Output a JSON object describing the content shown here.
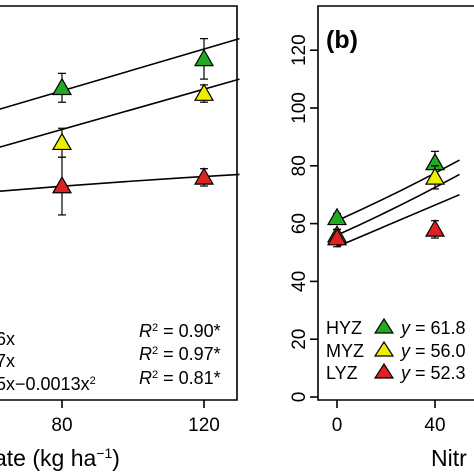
{
  "figure": {
    "background": "#ffffff"
  },
  "chart_data": [
    {
      "panel": "left (cropped)",
      "type": "scatter",
      "title": "",
      "xlabel": "ate (kg ha",
      "xlabel_sup": "−1",
      "xlabel_end": ")",
      "ylabel": "",
      "xlim": [
        -25,
        135
      ],
      "ylim": [
        0,
        131
      ],
      "xticks": [
        80,
        120
      ],
      "grid": false,
      "series": [
        {
          "color": "#22aa22",
          "marker": "triangle-up",
          "x": [
            80,
            120
          ],
          "y": [
            107,
            117
          ],
          "err": [
            5,
            7
          ],
          "fit": {
            "type": "linear",
            "x0": -25,
            "y0": 68,
            "x1": 130,
            "y1": 124
          }
        },
        {
          "color": "#eeee00",
          "marker": "triangle-up",
          "x": [
            80,
            120
          ],
          "y": [
            88,
            105
          ],
          "err": [
            5,
            3
          ],
          "fit": {
            "type": "linear",
            "x0": -25,
            "y0": 56,
            "x1": 130,
            "y1": 110
          }
        },
        {
          "color": "#dd2222",
          "marker": "triangle-up",
          "x": [
            80,
            120
          ],
          "y": [
            73,
            76
          ],
          "err": [
            10,
            3
          ],
          "fit": {
            "type": "quadratic",
            "x0": -25,
            "y0": 60,
            "xm": 50,
            "ym": 70,
            "x1": 130,
            "y1": 77
          }
        }
      ],
      "annotations": [
        {
          "eq": "6x",
          "r2_value": " = 0.90*"
        },
        {
          "eq": "7x",
          "r2_value": " = 0.97*"
        },
        {
          "eq": "5x−0.0013x",
          "eq_sup": "2",
          "r2_value": " = 0.81*"
        }
      ],
      "r2_label": "R",
      "r2_sup": "2"
    },
    {
      "panel": "right (cropped)",
      "type": "scatter",
      "panel_label": "(b)",
      "title": "",
      "xlabel": "Nitr",
      "ylabel": "",
      "xlim": [
        -5,
        50
      ],
      "ylim": [
        0,
        131
      ],
      "xticks": [
        0,
        40
      ],
      "yticks": [
        0,
        20,
        40,
        60,
        80,
        100,
        120
      ],
      "grid": false,
      "series": [
        {
          "name": "HYZ",
          "color": "#22aa22",
          "marker": "triangle-up",
          "x": [
            0,
            40
          ],
          "y": [
            62,
            81
          ],
          "err": [
            1.5,
            4
          ],
          "eq_prefix": "y",
          "eq_rest": " = 61.8",
          "fit": {
            "x0": 0,
            "y0": 61,
            "xm": 25,
            "ym": 71,
            "x1": 50,
            "y1": 82
          }
        },
        {
          "name": "MYZ",
          "color": "#eeee00",
          "marker": "triangle-up",
          "x": [
            0,
            40
          ],
          "y": [
            56,
            76
          ],
          "err": [
            2,
            4
          ],
          "eq_prefix": "y",
          "eq_rest": " = 56.0",
          "fit": {
            "x0": 0,
            "y0": 56,
            "xm": 25,
            "ym": 66,
            "x1": 50,
            "y1": 77
          }
        },
        {
          "name": "LYZ",
          "color": "#dd2222",
          "marker": "triangle-up",
          "x": [
            0,
            40
          ],
          "y": [
            55,
            58
          ],
          "err": [
            3,
            3
          ],
          "eq_prefix": "y",
          "eq_rest": " = 52.3",
          "fit": {
            "x0": 0,
            "y0": 52,
            "xm": 25,
            "ym": 61,
            "x1": 50,
            "y1": 70
          }
        }
      ]
    }
  ]
}
